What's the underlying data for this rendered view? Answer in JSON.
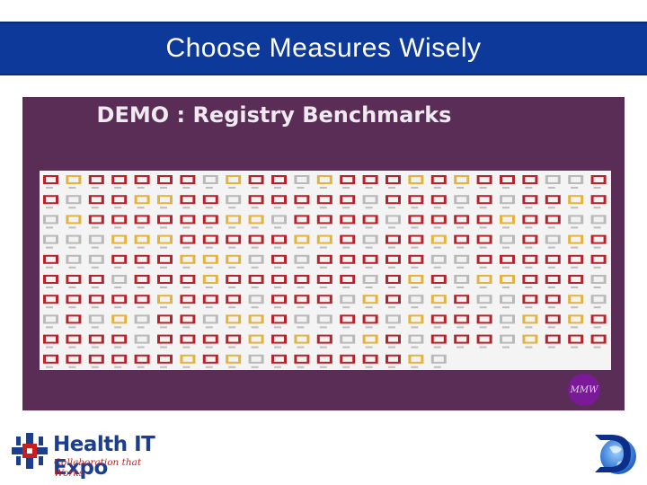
{
  "header": {
    "title": "Choose Measures Wisely"
  },
  "slide": {
    "image_title": "DEMO : Registry Benchmarks",
    "badge": "MMW"
  },
  "footer": {
    "expo_name": "Health IT Expo",
    "expo_tagline": "Collaboration that Works",
    "right_logo_icon": "globe-d-logo"
  },
  "colors": {
    "title_bar": "#0d3a9a",
    "panel": "#5a2d57",
    "tile_red": "#b8232b",
    "tile_gold": "#e3b33d",
    "tile_gray": "#b9b9b9"
  }
}
